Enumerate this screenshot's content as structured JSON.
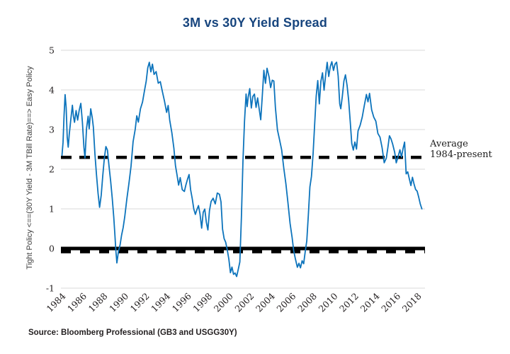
{
  "title": "3M vs 30Y Yield Spread",
  "source_note": "Source: Bloomberg Professional (GB3 and USGG30Y)",
  "colors": {
    "title": "#17457e",
    "series_line": "#0d74bc",
    "gridline": "#d8d8d8",
    "tick_text": "#231f20",
    "reference_line": "#000000",
    "background": "#ffffff"
  },
  "chart_data": {
    "type": "line",
    "title": "3M vs 30Y Yield Spread",
    "xlabel": "",
    "ylabel": "Tight Policy <==(30Y Yield - 3M TBill Rate)==> Easy Policy",
    "x_ticks": [
      1984,
      1986,
      1988,
      1990,
      1992,
      1994,
      1996,
      1998,
      2000,
      2002,
      2004,
      2006,
      2008,
      2010,
      2012,
      2014,
      2016,
      2018
    ],
    "y_ticks": [
      -1,
      0,
      1,
      2,
      3,
      4,
      5
    ],
    "xlim": [
      1983.9,
      2018.7
    ],
    "ylim": [
      -1,
      5
    ],
    "grid": "horizontal-only",
    "legend_position": "none",
    "reference_lines": {
      "zero": {
        "value": 0,
        "style": "solid-thick-with-dashes",
        "color": "#000000"
      },
      "average": {
        "value": 2.3,
        "style": "dashed-thick",
        "color": "#000000",
        "annotation": [
          "Average",
          "1984-present"
        ]
      }
    },
    "noise_amplitude": 0.07,
    "series": [
      {
        "name": "30Y Yield minus 3M TBill Rate",
        "color": "#0d74bc",
        "points": [
          [
            1984.0,
            2.35
          ],
          [
            1984.1,
            2.7
          ],
          [
            1984.2,
            3.3
          ],
          [
            1984.3,
            3.85
          ],
          [
            1984.4,
            3.5
          ],
          [
            1984.5,
            2.8
          ],
          [
            1984.6,
            2.55
          ],
          [
            1984.7,
            2.9
          ],
          [
            1984.85,
            3.3
          ],
          [
            1985.0,
            3.65
          ],
          [
            1985.1,
            3.4
          ],
          [
            1985.2,
            3.15
          ],
          [
            1985.35,
            3.5
          ],
          [
            1985.5,
            3.25
          ],
          [
            1985.65,
            3.45
          ],
          [
            1985.8,
            3.6
          ],
          [
            1985.95,
            3.2
          ],
          [
            1986.1,
            2.55
          ],
          [
            1986.2,
            2.25
          ],
          [
            1986.35,
            3.0
          ],
          [
            1986.5,
            3.3
          ],
          [
            1986.6,
            3.05
          ],
          [
            1986.75,
            3.55
          ],
          [
            1986.9,
            3.35
          ],
          [
            1987.0,
            3.0
          ],
          [
            1987.15,
            2.4
          ],
          [
            1987.3,
            1.85
          ],
          [
            1987.45,
            1.45
          ],
          [
            1987.6,
            1.05
          ],
          [
            1987.75,
            1.35
          ],
          [
            1987.9,
            1.8
          ],
          [
            1988.05,
            2.3
          ],
          [
            1988.2,
            2.6
          ],
          [
            1988.35,
            2.45
          ],
          [
            1988.5,
            2.1
          ],
          [
            1988.65,
            1.75
          ],
          [
            1988.8,
            1.35
          ],
          [
            1988.95,
            0.85
          ],
          [
            1989.05,
            0.35
          ],
          [
            1989.15,
            -0.05
          ],
          [
            1989.25,
            -0.3
          ],
          [
            1989.4,
            -0.12
          ],
          [
            1989.55,
            0.05
          ],
          [
            1989.7,
            0.35
          ],
          [
            1989.85,
            0.5
          ],
          [
            1990.0,
            0.8
          ],
          [
            1990.2,
            1.25
          ],
          [
            1990.4,
            1.6
          ],
          [
            1990.6,
            2.1
          ],
          [
            1990.8,
            2.65
          ],
          [
            1991.0,
            3.05
          ],
          [
            1991.15,
            3.35
          ],
          [
            1991.3,
            3.2
          ],
          [
            1991.5,
            3.55
          ],
          [
            1991.7,
            3.75
          ],
          [
            1991.9,
            3.95
          ],
          [
            1992.05,
            4.25
          ],
          [
            1992.2,
            4.5
          ],
          [
            1992.35,
            4.7
          ],
          [
            1992.5,
            4.45
          ],
          [
            1992.65,
            4.6
          ],
          [
            1992.8,
            4.35
          ],
          [
            1993.0,
            4.45
          ],
          [
            1993.2,
            4.15
          ],
          [
            1993.4,
            4.25
          ],
          [
            1993.6,
            3.9
          ],
          [
            1993.8,
            3.65
          ],
          [
            1994.0,
            3.45
          ],
          [
            1994.15,
            3.6
          ],
          [
            1994.3,
            3.3
          ],
          [
            1994.5,
            2.95
          ],
          [
            1994.7,
            2.5
          ],
          [
            1994.85,
            2.15
          ],
          [
            1995.0,
            1.85
          ],
          [
            1995.15,
            1.55
          ],
          [
            1995.3,
            1.75
          ],
          [
            1995.5,
            1.5
          ],
          [
            1995.7,
            1.4
          ],
          [
            1995.85,
            1.6
          ],
          [
            1996.0,
            1.7
          ],
          [
            1996.15,
            1.8
          ],
          [
            1996.3,
            1.5
          ],
          [
            1996.45,
            1.3
          ],
          [
            1996.6,
            1.0
          ],
          [
            1996.75,
            0.8
          ],
          [
            1996.9,
            1.05
          ],
          [
            1997.05,
            1.1
          ],
          [
            1997.2,
            0.8
          ],
          [
            1997.35,
            0.55
          ],
          [
            1997.5,
            0.9
          ],
          [
            1997.65,
            1.0
          ],
          [
            1997.8,
            0.7
          ],
          [
            1997.95,
            0.5
          ],
          [
            1998.1,
            0.9
          ],
          [
            1998.25,
            1.25
          ],
          [
            1998.45,
            1.3
          ],
          [
            1998.65,
            1.15
          ],
          [
            1998.85,
            1.45
          ],
          [
            1999.05,
            1.4
          ],
          [
            1999.2,
            1.15
          ],
          [
            1999.35,
            0.45
          ],
          [
            1999.5,
            0.3
          ],
          [
            1999.65,
            0.15
          ],
          [
            1999.8,
            -0.05
          ],
          [
            1999.95,
            -0.3
          ],
          [
            2000.1,
            -0.6
          ],
          [
            2000.25,
            -0.45
          ],
          [
            2000.4,
            -0.7
          ],
          [
            2000.55,
            -0.6
          ],
          [
            2000.7,
            -0.72
          ],
          [
            2000.85,
            -0.55
          ],
          [
            2001.0,
            -0.3
          ],
          [
            2001.15,
            0.8
          ],
          [
            2001.3,
            2.2
          ],
          [
            2001.45,
            3.2
          ],
          [
            2001.6,
            3.9
          ],
          [
            2001.7,
            3.6
          ],
          [
            2001.8,
            3.8
          ],
          [
            2001.95,
            4.0
          ],
          [
            2002.1,
            3.6
          ],
          [
            2002.25,
            3.85
          ],
          [
            2002.4,
            3.95
          ],
          [
            2002.55,
            3.6
          ],
          [
            2002.7,
            3.8
          ],
          [
            2002.85,
            3.55
          ],
          [
            2003.0,
            3.25
          ],
          [
            2003.15,
            3.9
          ],
          [
            2003.3,
            4.5
          ],
          [
            2003.45,
            4.2
          ],
          [
            2003.6,
            4.55
          ],
          [
            2003.8,
            4.3
          ],
          [
            2003.95,
            4.1
          ],
          [
            2004.1,
            4.2
          ],
          [
            2004.25,
            4.25
          ],
          [
            2004.4,
            3.5
          ],
          [
            2004.6,
            3.0
          ],
          [
            2004.8,
            2.7
          ],
          [
            2005.0,
            2.45
          ],
          [
            2005.2,
            2.1
          ],
          [
            2005.4,
            1.65
          ],
          [
            2005.6,
            1.15
          ],
          [
            2005.8,
            0.7
          ],
          [
            2006.0,
            0.3
          ],
          [
            2006.15,
            0.0
          ],
          [
            2006.3,
            -0.3
          ],
          [
            2006.5,
            -0.52
          ],
          [
            2006.65,
            -0.35
          ],
          [
            2006.8,
            -0.5
          ],
          [
            2006.95,
            -0.3
          ],
          [
            2007.1,
            -0.45
          ],
          [
            2007.25,
            -0.15
          ],
          [
            2007.4,
            0.2
          ],
          [
            2007.55,
            0.9
          ],
          [
            2007.7,
            1.6
          ],
          [
            2007.85,
            1.85
          ],
          [
            2008.0,
            2.4
          ],
          [
            2008.15,
            3.1
          ],
          [
            2008.3,
            3.9
          ],
          [
            2008.45,
            4.3
          ],
          [
            2008.6,
            3.7
          ],
          [
            2008.75,
            4.15
          ],
          [
            2008.9,
            4.5
          ],
          [
            2009.05,
            4.0
          ],
          [
            2009.2,
            4.35
          ],
          [
            2009.35,
            4.65
          ],
          [
            2009.5,
            4.4
          ],
          [
            2009.65,
            4.6
          ],
          [
            2009.8,
            4.7
          ],
          [
            2009.95,
            4.45
          ],
          [
            2010.1,
            4.6
          ],
          [
            2010.25,
            4.65
          ],
          [
            2010.4,
            4.3
          ],
          [
            2010.55,
            3.7
          ],
          [
            2010.65,
            3.5
          ],
          [
            2010.8,
            3.9
          ],
          [
            2010.95,
            4.2
          ],
          [
            2011.1,
            4.35
          ],
          [
            2011.25,
            4.1
          ],
          [
            2011.4,
            3.7
          ],
          [
            2011.55,
            3.2
          ],
          [
            2011.7,
            2.7
          ],
          [
            2011.85,
            2.45
          ],
          [
            2012.0,
            2.7
          ],
          [
            2012.15,
            2.55
          ],
          [
            2012.3,
            2.9
          ],
          [
            2012.5,
            3.1
          ],
          [
            2012.7,
            3.3
          ],
          [
            2012.9,
            3.6
          ],
          [
            2013.1,
            3.85
          ],
          [
            2013.25,
            3.7
          ],
          [
            2013.4,
            3.85
          ],
          [
            2013.6,
            3.55
          ],
          [
            2013.8,
            3.3
          ],
          [
            2014.0,
            3.15
          ],
          [
            2014.2,
            2.95
          ],
          [
            2014.4,
            2.75
          ],
          [
            2014.6,
            2.5
          ],
          [
            2014.8,
            2.2
          ],
          [
            2015.0,
            2.35
          ],
          [
            2015.15,
            2.6
          ],
          [
            2015.3,
            2.85
          ],
          [
            2015.45,
            2.7
          ],
          [
            2015.6,
            2.65
          ],
          [
            2015.8,
            2.4
          ],
          [
            2015.95,
            2.15
          ],
          [
            2016.1,
            2.35
          ],
          [
            2016.3,
            2.5
          ],
          [
            2016.45,
            2.3
          ],
          [
            2016.6,
            2.5
          ],
          [
            2016.75,
            2.65
          ],
          [
            2016.9,
            1.85
          ],
          [
            2017.05,
            1.95
          ],
          [
            2017.2,
            1.75
          ],
          [
            2017.35,
            1.6
          ],
          [
            2017.5,
            1.75
          ],
          [
            2017.65,
            1.6
          ],
          [
            2017.8,
            1.5
          ],
          [
            2017.95,
            1.4
          ],
          [
            2018.1,
            1.25
          ],
          [
            2018.25,
            1.1
          ],
          [
            2018.4,
            1.0
          ]
        ]
      }
    ]
  }
}
